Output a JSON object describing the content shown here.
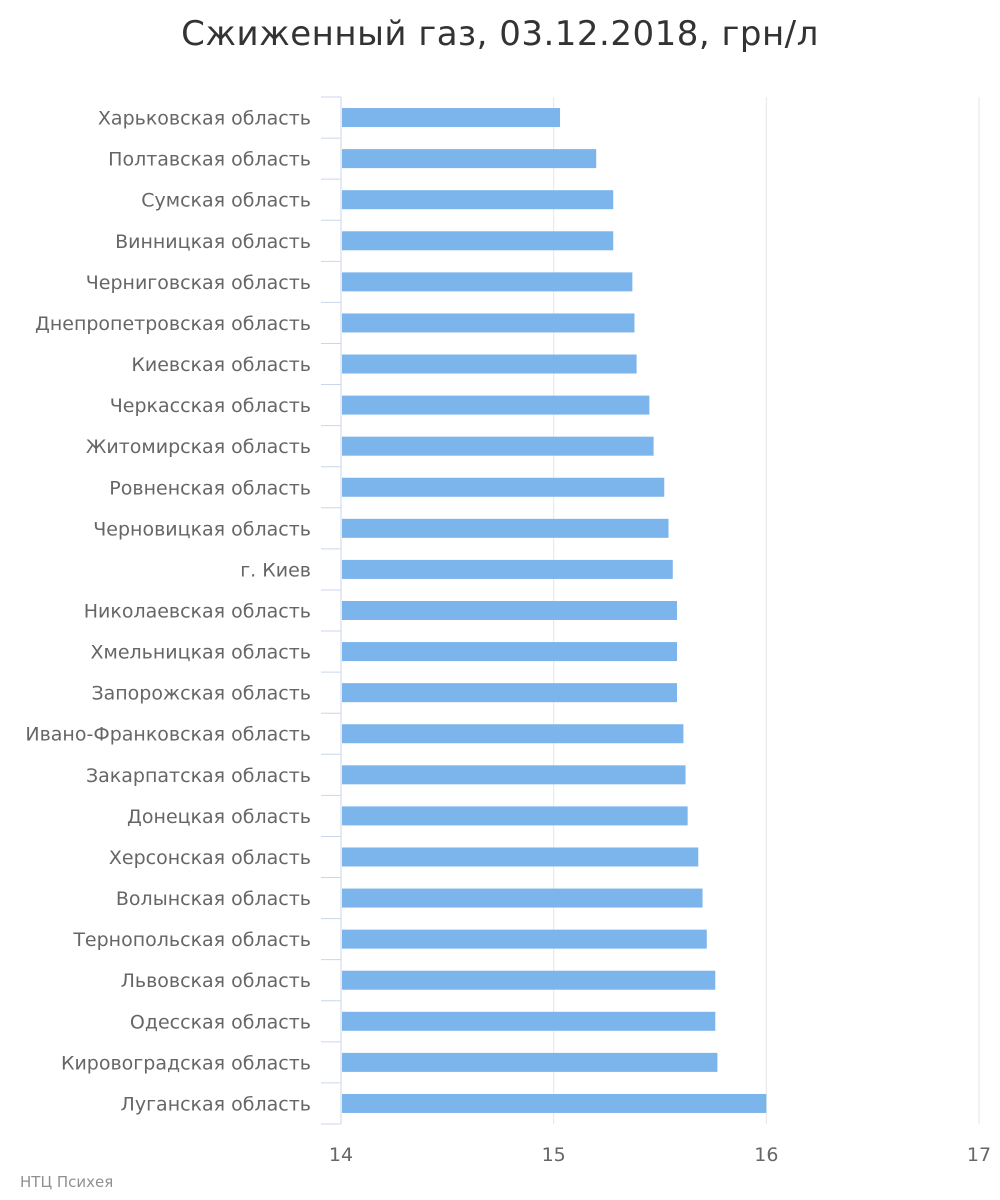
{
  "title": "Сжиженный газ, 03.12.2018, грн/л",
  "credit": "НТЦ Психея",
  "colors": {
    "bar": "#7cb5ec",
    "grid": "#e6e6e6",
    "axis": "#ccd6eb",
    "label": "#666666"
  },
  "chart_data": {
    "type": "bar",
    "orientation": "horizontal",
    "title": "Сжиженный газ, 03.12.2018, грн/л",
    "xlim": [
      14,
      17
    ],
    "xticks": [
      "14",
      "15",
      "16",
      "17"
    ],
    "grid": true,
    "categories": [
      "Харьковская область",
      "Полтавская область",
      "Сумская область",
      "Винницкая область",
      "Черниговская область",
      "Днепропетровская область",
      "Киевская область",
      "Черкасская область",
      "Житомирская область",
      "Ровненская область",
      "Черновицкая область",
      "г. Киев",
      "Николаевская область",
      "Хмельницкая область",
      "Запорожская область",
      "Ивано-Франковская область",
      "Закарпатская область",
      "Донецкая область",
      "Херсонская область",
      "Волынская область",
      "Тернопольская область",
      "Львовская область",
      "Одесская область",
      "Кировоградская область",
      "Луганская область"
    ],
    "values": [
      15.03,
      15.2,
      15.28,
      15.28,
      15.37,
      15.38,
      15.39,
      15.45,
      15.47,
      15.52,
      15.54,
      15.56,
      15.58,
      15.58,
      15.58,
      15.61,
      15.62,
      15.63,
      15.68,
      15.7,
      15.72,
      15.76,
      15.76,
      15.77,
      16.0
    ]
  }
}
